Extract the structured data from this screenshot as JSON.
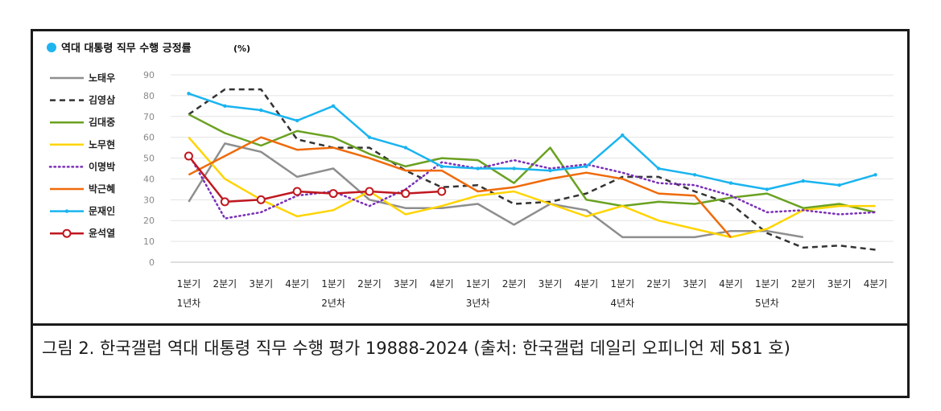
{
  "chart_data": {
    "type": "line",
    "title": "역대 대통령 직무 수행 긍정률",
    "title_unit": "(%)",
    "title_marker_color": "#1eb4f0",
    "ylim": [
      0,
      90
    ],
    "yticks": [
      0,
      10,
      20,
      30,
      40,
      50,
      60,
      70,
      80,
      90
    ],
    "grid": true,
    "legend_position": "left",
    "categories": [
      "1분기",
      "2분기",
      "3분기",
      "4분기",
      "1분기",
      "2분기",
      "3분기",
      "4분기",
      "1분기",
      "2분기",
      "3분기",
      "4분기",
      "1분기",
      "2분기",
      "3분기",
      "4분기",
      "1분기",
      "2분기",
      "3분기",
      "4분기"
    ],
    "year_labels": [
      "1년차",
      "2년차",
      "3년차",
      "4년차",
      "5년차"
    ],
    "series": [
      {
        "name": "노태우",
        "color": "#8e8e8e",
        "dash": "solid",
        "marker": "none",
        "values": [
          29,
          57,
          53,
          41,
          45,
          30,
          26,
          26,
          28,
          18,
          28,
          25,
          12,
          12,
          12,
          15,
          15,
          12,
          null,
          null
        ]
      },
      {
        "name": "김영삼",
        "color": "#333333",
        "dash": "dashed",
        "marker": "none",
        "values": [
          71,
          83,
          83,
          59,
          55,
          55,
          44,
          36,
          37,
          28,
          29,
          33,
          41,
          41,
          34,
          28,
          14,
          7,
          8,
          6
        ]
      },
      {
        "name": "김대중",
        "color": "#6aa121",
        "dash": "solid",
        "marker": "none",
        "values": [
          71,
          62,
          56,
          63,
          60,
          52,
          46,
          50,
          49,
          38,
          55,
          30,
          27,
          29,
          28,
          31,
          33,
          26,
          28,
          24
        ]
      },
      {
        "name": "노무현",
        "color": "#ffd400",
        "dash": "solid",
        "marker": "none",
        "values": [
          60,
          40,
          30,
          22,
          25,
          34,
          23,
          27,
          32,
          34,
          28,
          22,
          27,
          20,
          16,
          12,
          16,
          25,
          27,
          27
        ]
      },
      {
        "name": "이명박",
        "color": "#7a2fb8",
        "dash": "dotted",
        "marker": "none",
        "values": [
          52,
          21,
          24,
          32,
          34,
          27,
          35,
          48,
          45,
          49,
          45,
          47,
          43,
          38,
          37,
          32,
          24,
          25,
          23,
          24
        ]
      },
      {
        "name": "박근혜",
        "color": "#ef6a0a",
        "dash": "solid",
        "marker": "none",
        "values": [
          42,
          51,
          60,
          54,
          55,
          50,
          44,
          44,
          34,
          36,
          40,
          43,
          40,
          33,
          32,
          12,
          null,
          null,
          null,
          null
        ]
      },
      {
        "name": "문재인",
        "color": "#19b4f0",
        "dash": "solid",
        "marker": "dot",
        "values": [
          81,
          75,
          73,
          68,
          75,
          60,
          55,
          46,
          45,
          45,
          44,
          46,
          61,
          45,
          42,
          38,
          35,
          39,
          37,
          42
        ]
      },
      {
        "name": "윤석열",
        "color": "#c0171f",
        "dash": "solid",
        "marker": "circle",
        "values": [
          51,
          29,
          30,
          34,
          33,
          34,
          33,
          34,
          null,
          null,
          null,
          null,
          null,
          null,
          null,
          null,
          null,
          null,
          null,
          null
        ]
      }
    ]
  },
  "caption": "그림 2. 한국갤럽 역대 대통령 직무 수행 평가 19888-2024 (출처: 한국갤럽 데일리 오피니언 제 581 호)"
}
